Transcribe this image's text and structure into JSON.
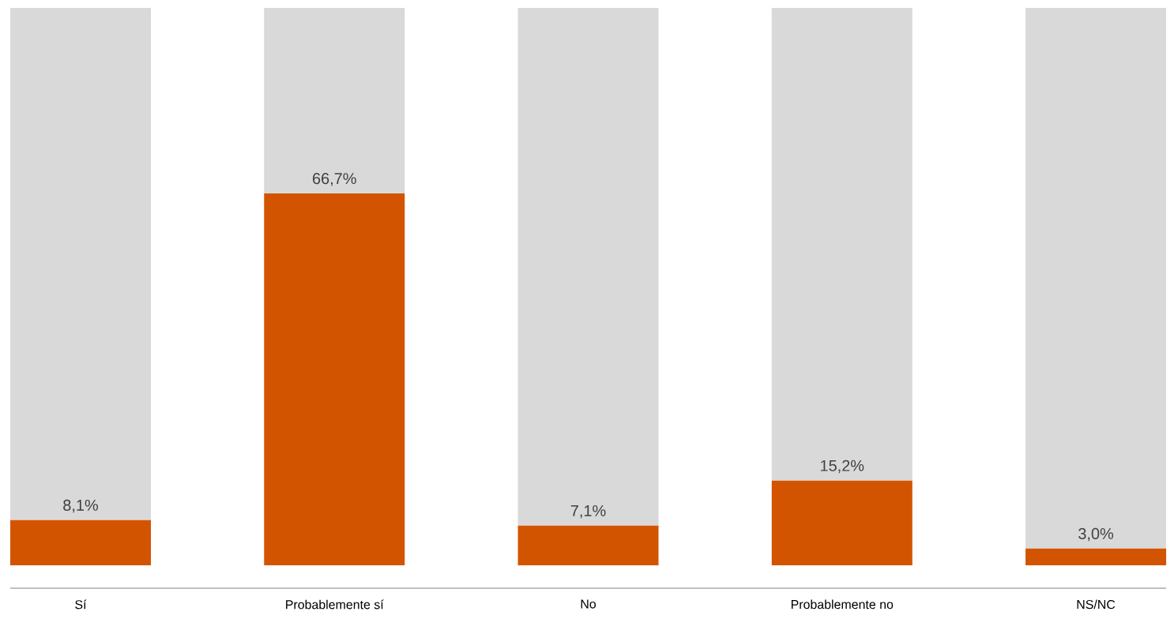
{
  "chart_data": {
    "type": "bar",
    "stacked": true,
    "tick_labels": "x",
    "categories": [
      "Sí",
      "Probablemente sí",
      "No",
      "Probablemente no",
      "NS/NC"
    ],
    "series": [
      {
        "color": "#d35400",
        "values": [
          8.1,
          66.7,
          7.1,
          15.2,
          3.0
        ],
        "value_labels": [
          "8,1%",
          "66,7%",
          "7,1%",
          "15,2%",
          "3,0%"
        ]
      },
      {
        "color": "#d9d9d9",
        "values": [
          91.9,
          33.3,
          92.9,
          84.8,
          97.0
        ]
      }
    ]
  }
}
